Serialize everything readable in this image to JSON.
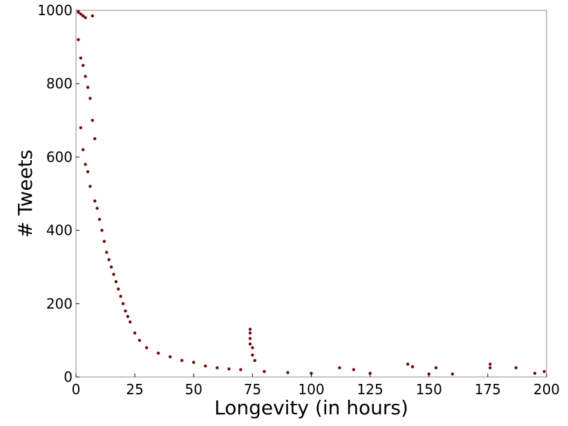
{
  "chart_data": {
    "type": "scatter",
    "title": "",
    "xlabel": "Longevity (in hours)",
    "ylabel": "# Tweets",
    "xlim": [
      0,
      200
    ],
    "ylim": [
      0,
      1000
    ],
    "xticks": [
      "0",
      "25",
      "50",
      "75",
      "100",
      "125",
      "150",
      "175",
      "200"
    ],
    "yticks": [
      "0",
      "200",
      "400",
      "600",
      "800",
      "1000"
    ],
    "grid": false,
    "marker_color": "#7a0000",
    "series": [
      {
        "points": [
          [
            1,
            995
          ],
          [
            2,
            990
          ],
          [
            3,
            985
          ],
          [
            4,
            980
          ],
          [
            7,
            985
          ],
          [
            1,
            920
          ],
          [
            2,
            870
          ],
          [
            3,
            850
          ],
          [
            4,
            820
          ],
          [
            5,
            790
          ],
          [
            6,
            760
          ],
          [
            7,
            700
          ],
          [
            8,
            650
          ],
          [
            2,
            680
          ],
          [
            3,
            620
          ],
          [
            4,
            580
          ],
          [
            5,
            560
          ],
          [
            6,
            520
          ],
          [
            8,
            480
          ],
          [
            9,
            460
          ],
          [
            10,
            430
          ],
          [
            11,
            400
          ],
          [
            12,
            370
          ],
          [
            13,
            340
          ],
          [
            14,
            320
          ],
          [
            15,
            300
          ],
          [
            16,
            280
          ],
          [
            17,
            260
          ],
          [
            18,
            240
          ],
          [
            19,
            220
          ],
          [
            20,
            200
          ],
          [
            21,
            180
          ],
          [
            22,
            165
          ],
          [
            23,
            150
          ],
          [
            25,
            120
          ],
          [
            27,
            100
          ],
          [
            30,
            80
          ],
          [
            35,
            65
          ],
          [
            40,
            55
          ],
          [
            45,
            45
          ],
          [
            50,
            40
          ],
          [
            55,
            30
          ],
          [
            60,
            25
          ],
          [
            65,
            22
          ],
          [
            70,
            20
          ],
          [
            74,
            130
          ],
          [
            74,
            120
          ],
          [
            74,
            105
          ],
          [
            74,
            90
          ],
          [
            75,
            80
          ],
          [
            75,
            60
          ],
          [
            76,
            45
          ],
          [
            80,
            15
          ],
          [
            90,
            12
          ],
          [
            100,
            10
          ],
          [
            112,
            25
          ],
          [
            118,
            20
          ],
          [
            125,
            10
          ],
          [
            141,
            35
          ],
          [
            143,
            28
          ],
          [
            150,
            8
          ],
          [
            153,
            25
          ],
          [
            160,
            8
          ],
          [
            176,
            35
          ],
          [
            176,
            25
          ],
          [
            187,
            25
          ],
          [
            195,
            10
          ],
          [
            199,
            15
          ]
        ]
      }
    ]
  }
}
